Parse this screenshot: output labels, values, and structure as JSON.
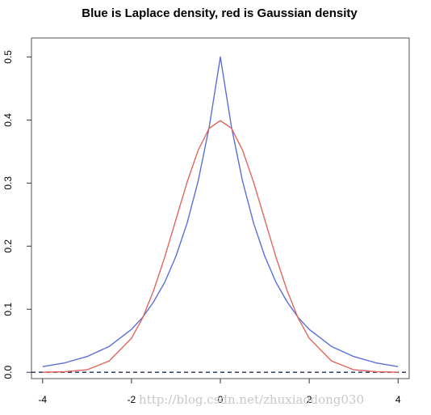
{
  "chart_data": {
    "type": "line",
    "title": "Blue is Laplace density, red is Gaussian density",
    "xlabel": "",
    "ylabel": "",
    "xlim": [
      -4.25,
      4.25
    ],
    "ylim": [
      -0.01,
      0.53
    ],
    "x_ticks": [
      -4,
      -2,
      0,
      2,
      4
    ],
    "x_tick_labels": [
      "-4",
      "-2",
      "0",
      "2",
      "4"
    ],
    "y_ticks": [
      0.0,
      0.1,
      0.2,
      0.3,
      0.4,
      0.5
    ],
    "y_tick_labels": [
      "0.0",
      "0.1",
      "0.2",
      "0.3",
      "0.4",
      "0.5"
    ],
    "grid": false,
    "x": [
      -4,
      -3.5,
      -3,
      -2.5,
      -2,
      -1.75,
      -1.5,
      -1.25,
      -1,
      -0.75,
      -0.5,
      -0.25,
      0,
      0.25,
      0.5,
      0.75,
      1,
      1.25,
      1.5,
      1.75,
      2,
      2.5,
      3,
      3.5,
      4
    ],
    "series": [
      {
        "color": "#5a6fd8",
        "values": [
          0.009,
          0.015,
          0.025,
          0.041,
          0.068,
          0.087,
          0.112,
          0.143,
          0.184,
          0.236,
          0.303,
          0.389,
          0.5,
          0.389,
          0.303,
          0.236,
          0.184,
          0.143,
          0.112,
          0.087,
          0.068,
          0.041,
          0.025,
          0.015,
          0.009
        ]
      },
      {
        "color": "#e0675f",
        "values": [
          0.0001,
          0.0009,
          0.004,
          0.018,
          0.054,
          0.086,
          0.13,
          0.183,
          0.242,
          0.301,
          0.352,
          0.387,
          0.399,
          0.387,
          0.352,
          0.301,
          0.242,
          0.183,
          0.13,
          0.086,
          0.054,
          0.018,
          0.004,
          0.0009,
          0.0001
        ]
      }
    ],
    "reference_line": {
      "y": 0,
      "style": "dashed",
      "color": "#1f2a5a"
    }
  },
  "watermark": "http://blog.csdn.net/zhuxiaodong030"
}
